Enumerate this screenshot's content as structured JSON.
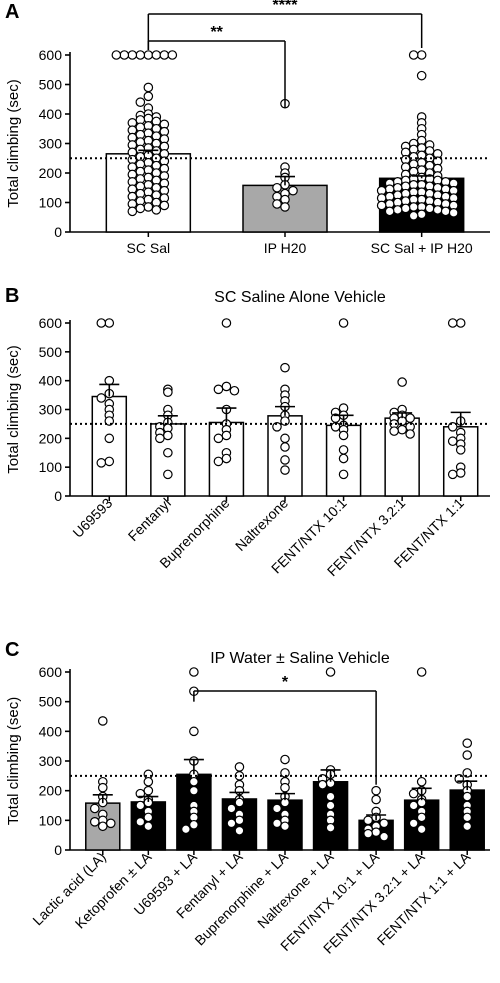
{
  "chart_data": [
    {
      "panel": "A",
      "type": "bar",
      "title": "",
      "ylabel": "Total climbing (sec)",
      "ylim": [
        0,
        600
      ],
      "yticks": [
        0,
        100,
        200,
        300,
        400,
        500,
        600
      ],
      "reference_line": 250,
      "categories": [
        "SC Sal",
        "IP H20",
        "SC Sal + IP H20"
      ],
      "fills": [
        "white",
        "gray",
        "black"
      ],
      "means": [
        265,
        158,
        182
      ],
      "sem": [
        12,
        30,
        8
      ],
      "points": [
        [
          600,
          600,
          600,
          600,
          600,
          600,
          600,
          600,
          490,
          460,
          440,
          420,
          400,
          395,
          390,
          385,
          380,
          375,
          370,
          365,
          360,
          355,
          350,
          345,
          340,
          335,
          330,
          325,
          320,
          315,
          310,
          305,
          300,
          295,
          290,
          285,
          280,
          275,
          270,
          265,
          260,
          255,
          250,
          245,
          240,
          235,
          230,
          225,
          220,
          215,
          210,
          205,
          200,
          195,
          190,
          185,
          180,
          175,
          170,
          165,
          160,
          155,
          150,
          145,
          140,
          135,
          130,
          125,
          120,
          115,
          110,
          105,
          100,
          95,
          90,
          85,
          80,
          75,
          70
        ],
        [
          435,
          220,
          200,
          185,
          160,
          150,
          140,
          130,
          120,
          110,
          95,
          85
        ],
        [
          600,
          600,
          530,
          390,
          370,
          350,
          330,
          310,
          300,
          295,
          290,
          285,
          280,
          275,
          270,
          265,
          260,
          255,
          250,
          245,
          240,
          235,
          230,
          225,
          220,
          215,
          210,
          205,
          200,
          195,
          190,
          185,
          180,
          180,
          175,
          175,
          170,
          170,
          165,
          165,
          160,
          160,
          155,
          155,
          150,
          150,
          145,
          145,
          140,
          140,
          135,
          135,
          130,
          130,
          125,
          125,
          120,
          120,
          115,
          115,
          110,
          110,
          105,
          105,
          100,
          100,
          95,
          95,
          90,
          90,
          85,
          85,
          80,
          80,
          75,
          75,
          70,
          70,
          65,
          60,
          55
        ]
      ],
      "significance": [
        {
          "from": 0,
          "to": 1,
          "label": "**"
        },
        {
          "from": 0,
          "to": 2,
          "label": "****"
        }
      ]
    },
    {
      "panel": "B",
      "type": "bar",
      "title": "SC Saline Alone Vehicle",
      "ylabel": "Total climbing (sec)",
      "ylim": [
        0,
        600
      ],
      "yticks": [
        0,
        100,
        200,
        300,
        400,
        500,
        600
      ],
      "reference_line": 250,
      "categories": [
        "U69593",
        "Fentanyl",
        "Buprenorphine",
        "Naltrexone",
        "FENT/NTX 10:1",
        "FENT/NTX 3.2:1",
        "FENT/NTX 1:1"
      ],
      "fills": [
        "white",
        "white",
        "white",
        "white",
        "white",
        "white",
        "white"
      ],
      "means": [
        345,
        250,
        255,
        278,
        245,
        270,
        240
      ],
      "sem": [
        42,
        28,
        50,
        32,
        35,
        18,
        50
      ],
      "points": [
        [
          600,
          600,
          400,
          355,
          340,
          320,
          300,
          280,
          260,
          200,
          120,
          115
        ],
        [
          370,
          360,
          300,
          280,
          255,
          240,
          235,
          220,
          210,
          200,
          150,
          75
        ],
        [
          600,
          380,
          370,
          365,
          300,
          250,
          230,
          210,
          200,
          150,
          130,
          120
        ],
        [
          445,
          370,
          350,
          330,
          310,
          280,
          260,
          240,
          200,
          170,
          125,
          90
        ],
        [
          600,
          305,
          290,
          280,
          270,
          245,
          240,
          230,
          210,
          160,
          130,
          75
        ],
        [
          395,
          300,
          290,
          280,
          270,
          270,
          260,
          250,
          240,
          230,
          225,
          215
        ],
        [
          600,
          600,
          260,
          240,
          220,
          200,
          190,
          180,
          160,
          100,
          80,
          75
        ]
      ],
      "significance": []
    },
    {
      "panel": "C",
      "type": "bar",
      "title": "IP Water ± Saline Vehicle",
      "ylabel": "Total climbing (sec)",
      "ylim": [
        0,
        600
      ],
      "yticks": [
        0,
        100,
        200,
        300,
        400,
        500,
        600
      ],
      "reference_line": 250,
      "categories": [
        "Lactic acid (LA)",
        "Ketoprofen ± LA",
        "U69593 + LA",
        "Fentanyl + LA",
        "Buprenorphine + LA",
        "Naltrexone + LA",
        "FENT/NTX 10:1 + LA",
        "FENT/NTX 3.2:1 + LA",
        "FENT/NTX 1:1 + LA"
      ],
      "fills": [
        "gray",
        "black",
        "black",
        "black",
        "black",
        "black",
        "black",
        "black",
        "black"
      ],
      "means": [
        158,
        162,
        255,
        172,
        168,
        230,
        100,
        168,
        202
      ],
      "sem": [
        28,
        18,
        50,
        22,
        22,
        40,
        18,
        40,
        30
      ],
      "points": [
        [
          435,
          230,
          210,
          180,
          160,
          140,
          120,
          100,
          95,
          90,
          80
        ],
        [
          255,
          230,
          200,
          190,
          170,
          160,
          150,
          130,
          110,
          95,
          80
        ],
        [
          600,
          535,
          400,
          300,
          255,
          230,
          200,
          150,
          130,
          110,
          85,
          70
        ],
        [
          280,
          250,
          220,
          200,
          170,
          160,
          140,
          120,
          100,
          90,
          65
        ],
        [
          305,
          260,
          230,
          210,
          180,
          160,
          140,
          120,
          100,
          90,
          80
        ],
        [
          600,
          270,
          255,
          240,
          225,
          220,
          180,
          150,
          120,
          100,
          75
        ],
        [
          200,
          170,
          130,
          110,
          100,
          90,
          80,
          70,
          60,
          55,
          45
        ],
        [
          600,
          230,
          200,
          190,
          170,
          160,
          150,
          130,
          110,
          90,
          70
        ],
        [
          360,
          320,
          260,
          240,
          220,
          200,
          180,
          150,
          130,
          110,
          80
        ]
      ],
      "significance": [
        {
          "from": 2,
          "to": 6,
          "label": "*"
        }
      ]
    }
  ],
  "colors": {
    "gray_bar": "#a8a8a8",
    "black_bar": "#000000",
    "white_bar": "#ffffff",
    "stroke": "#000000"
  }
}
